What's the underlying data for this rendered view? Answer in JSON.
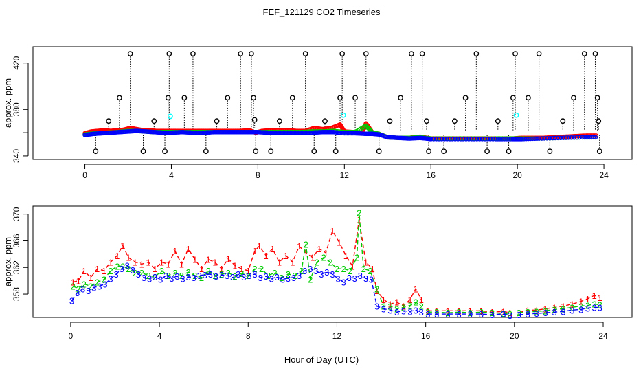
{
  "figure": {
    "title": "FEF_121129  CO2 Timeseries",
    "xlabel": "Hour of Day (UTC)"
  },
  "colors": {
    "series1": "#ff0000",
    "series2": "#00cc00",
    "series3": "#0000ff",
    "flagged": "#000000",
    "cyan": "#00ffff",
    "axis": "#000000"
  },
  "chart_data": [
    {
      "type": "scatter",
      "title": "",
      "xlabel": "",
      "ylabel": "approx. ppm",
      "xlim": [
        -2.4,
        25.3
      ],
      "ylim": [
        337,
        434
      ],
      "xticks": [
        0,
        4,
        8,
        12,
        16,
        20,
        24
      ],
      "yticks": [
        340,
        380,
        420
      ],
      "extra_yticks": [
        360
      ],
      "base_series": [
        {
          "name": "1",
          "color": "#ff0000",
          "x": [
            0.0,
            0.3,
            0.6,
            0.9,
            1.2,
            1.5,
            1.8,
            2.1,
            2.4,
            2.7,
            3.0,
            3.3,
            3.6,
            4.0,
            4.4,
            4.8,
            5.2,
            5.6,
            6.0,
            6.4,
            6.8,
            7.2,
            7.6,
            7.9,
            8.2,
            8.6,
            9.0,
            9.4,
            9.8,
            10.2,
            10.6,
            11.0,
            11.4,
            11.8,
            12.0,
            12.4,
            12.8,
            13.0,
            13.3,
            13.6,
            14.0,
            14.5,
            15.0,
            15.5,
            16.0,
            16.5,
            17.0,
            17.5,
            18.0,
            18.5,
            19.0,
            19.5,
            19.8,
            20.2,
            20.7,
            21.2,
            21.7,
            22.2,
            22.7,
            23.2,
            23.7
          ],
          "y": [
            359.5,
            361,
            361.5,
            362,
            361.5,
            362,
            362.5,
            364,
            363,
            362,
            362,
            361.5,
            361.5,
            361.5,
            361.5,
            361.5,
            361.5,
            361.5,
            361.5,
            361.5,
            361.5,
            361.5,
            362,
            360,
            361.5,
            362,
            362,
            362,
            361.5,
            361.5,
            364,
            363,
            364,
            367,
            361,
            360.5,
            360,
            368,
            360,
            359,
            356,
            355.5,
            355.5,
            356.5,
            355,
            355,
            355,
            355,
            355,
            355,
            355,
            355,
            355,
            355.5,
            355.5,
            355.5,
            356,
            356.5,
            357,
            357.5,
            357.5
          ]
        },
        {
          "name": "2",
          "color": "#00cc00",
          "x": [
            0.0,
            0.5,
            1.0,
            1.5,
            2.0,
            2.4,
            2.8,
            3.2,
            3.6,
            4.0,
            4.5,
            5.0,
            5.5,
            6.0,
            6.5,
            7.0,
            7.5,
            8.0,
            8.5,
            9.0,
            9.5,
            10.0,
            10.5,
            11.0,
            11.5,
            12.0,
            12.5,
            13.0,
            13.3,
            13.6,
            14.0,
            14.5,
            15.0,
            15.5,
            16.0,
            17.0,
            18.0,
            19.0,
            19.8,
            20.2,
            21.0,
            22.0,
            23.0,
            23.7
          ],
          "y": [
            358.5,
            359.5,
            360,
            360.5,
            361.5,
            361.5,
            361,
            360.5,
            360.5,
            360.5,
            360.5,
            360.5,
            360.5,
            360.5,
            360.5,
            360.5,
            360.5,
            360.5,
            360.5,
            360.5,
            360.5,
            360.5,
            361,
            361,
            361.5,
            360.5,
            360.5,
            366,
            360,
            359,
            356,
            355.5,
            355.5,
            356,
            355,
            355,
            355,
            355,
            355,
            355,
            355,
            355.5,
            356,
            356
          ]
        },
        {
          "name": "3",
          "color": "#0000ff",
          "x": [
            0.0,
            0.4,
            0.8,
            1.2,
            1.6,
            2.0,
            2.4,
            2.8,
            3.2,
            3.6,
            4.0,
            4.5,
            5.0,
            5.5,
            6.0,
            6.5,
            7.0,
            7.5,
            8.0,
            8.5,
            9.0,
            9.5,
            10.0,
            10.5,
            11.0,
            11.5,
            12.0,
            12.5,
            13.0,
            13.3,
            13.6,
            14.0,
            14.5,
            15.0,
            15.5,
            15.8,
            16.0,
            17.0,
            18.0,
            19.0,
            19.8,
            20.2,
            21.0,
            22.0,
            23.0,
            23.7
          ],
          "y": [
            358,
            359,
            359.5,
            360,
            360.5,
            361,
            361.5,
            361,
            360.5,
            360,
            360,
            360.5,
            360,
            360,
            360.5,
            360.5,
            360.5,
            360.5,
            360.5,
            360,
            360,
            360,
            360,
            360,
            360.5,
            360.5,
            359.5,
            359.5,
            359,
            359,
            358.5,
            356,
            355.5,
            355,
            355.5,
            355,
            354.5,
            354.5,
            354.5,
            354.5,
            354.5,
            354.5,
            355,
            355.5,
            356,
            356
          ]
        }
      ],
      "flagged_points": {
        "x": [
          0.5,
          1.1,
          1.6,
          2.1,
          2.7,
          3.2,
          3.7,
          3.85,
          3.9,
          4.6,
          5.0,
          5.6,
          6.1,
          6.6,
          7.2,
          7.7,
          7.8,
          7.85,
          7.9,
          8.6,
          9.0,
          9.6,
          10.2,
          10.6,
          11.1,
          11.6,
          11.8,
          11.9,
          12.5,
          13.0,
          13.6,
          14.1,
          14.6,
          15.1,
          15.6,
          15.8,
          15.9,
          16.6,
          17.1,
          17.6,
          18.1,
          18.6,
          19.1,
          19.6,
          19.8,
          19.9,
          20.5,
          21.0,
          21.5,
          22.1,
          22.6,
          23.1,
          23.6,
          23.7,
          23.75,
          23.8
        ],
        "y": [
          344,
          370,
          390,
          428,
          344,
          370,
          344,
          390,
          428,
          390,
          428,
          344,
          370,
          390,
          428,
          428,
          390,
          371,
          344,
          344,
          370,
          390,
          428,
          344,
          370,
          344,
          390,
          428,
          390,
          428,
          344,
          370,
          390,
          428,
          428,
          370,
          344,
          344,
          370,
          390,
          428,
          344,
          370,
          344,
          390,
          428,
          390,
          428,
          344,
          370,
          390,
          428,
          428,
          390,
          370,
          344
        ]
      },
      "cyan_points": {
        "x": [
          3.95,
          11.95,
          19.95
        ],
        "y": [
          374,
          375,
          375
        ]
      }
    },
    {
      "type": "line",
      "title": "",
      "xlabel": "",
      "ylabel": "approx. ppm",
      "xlim": [
        -1.7,
        25.3
      ],
      "ylim": [
        354.5,
        371.2
      ],
      "xticks": [
        0,
        4,
        8,
        12,
        16,
        20,
        24
      ],
      "yticks": [
        358,
        362,
        366,
        370
      ],
      "series": [
        {
          "name": "1",
          "color": "#ff0000",
          "label": "1",
          "x": [
            0.1,
            0.35,
            0.6,
            0.9,
            1.2,
            1.5,
            1.8,
            2.1,
            2.35,
            2.6,
            2.9,
            3.2,
            3.5,
            3.8,
            4.1,
            4.4,
            4.7,
            5.0,
            5.3,
            5.6,
            5.9,
            6.2,
            6.5,
            6.8,
            7.1,
            7.4,
            7.7,
            8.0,
            8.3,
            8.5,
            8.8,
            9.1,
            9.4,
            9.7,
            10.0,
            10.3,
            10.6,
            10.9,
            11.2,
            11.5,
            11.8,
            12.1,
            12.4,
            12.7,
            13.0,
            13.3,
            13.6,
            13.8,
            14.1,
            14.4,
            14.7,
            15.0,
            15.3,
            15.55,
            15.8,
            16.1,
            16.5,
            17.0,
            17.5,
            18.0,
            18.5,
            19.0,
            19.5,
            19.8,
            20.2,
            20.6,
            21.0,
            21.4,
            21.8,
            22.2,
            22.6,
            23.0,
            23.3,
            23.6,
            23.85
          ],
          "y": [
            359.8,
            360,
            361.5,
            360.5,
            361.8,
            361.5,
            362.8,
            363.8,
            365.3,
            363.5,
            362.8,
            362.5,
            362.8,
            361.8,
            362.8,
            362.5,
            364.5,
            362.5,
            364.8,
            363.2,
            361.8,
            363.2,
            362.8,
            361.8,
            363.3,
            362.3,
            361.8,
            361.5,
            364.5,
            365.2,
            363.8,
            364.8,
            362.8,
            363.8,
            362.8,
            365.2,
            364.2,
            363.5,
            364.8,
            364.2,
            367.5,
            365.8,
            363.8,
            362.2,
            369.2,
            362.8,
            361.8,
            358.5,
            357.2,
            356.5,
            356.8,
            356.2,
            357.2,
            358.8,
            357.2,
            355.5,
            355.5,
            355.5,
            355.5,
            355.5,
            355.5,
            355.3,
            355.4,
            355.2,
            355.2,
            355.6,
            355.6,
            355.8,
            356.0,
            356.2,
            356.5,
            356.9,
            357.3,
            357.8,
            357.5
          ]
        },
        {
          "name": "2",
          "color": "#00cc00",
          "label": "2",
          "x": [
            0.1,
            0.35,
            0.6,
            0.9,
            1.2,
            1.5,
            1.8,
            2.1,
            2.35,
            2.6,
            2.9,
            3.2,
            3.5,
            3.8,
            4.1,
            4.4,
            4.7,
            5.0,
            5.3,
            5.6,
            5.9,
            6.2,
            6.5,
            6.8,
            7.1,
            7.4,
            7.7,
            8.0,
            8.3,
            8.6,
            8.9,
            9.2,
            9.5,
            9.8,
            10.1,
            10.4,
            10.6,
            10.8,
            11.1,
            11.4,
            11.7,
            12.0,
            12.3,
            12.6,
            12.9,
            13.0,
            13.2,
            13.5,
            13.8,
            14.1,
            14.4,
            14.7,
            15.0,
            15.3,
            15.55,
            15.8,
            16.1,
            16.5,
            17.0,
            17.5,
            18.0,
            18.5,
            19.0,
            19.5,
            19.8,
            20.2,
            20.6,
            21.0,
            21.4,
            21.8,
            22.2,
            22.6,
            23.0,
            23.3,
            23.6,
            23.85
          ],
          "y": [
            359.2,
            358.8,
            359.5,
            359.2,
            359.8,
            360.2,
            361.5,
            362.2,
            362.2,
            361.8,
            361.2,
            361.2,
            360.8,
            360.6,
            361.5,
            360.8,
            361.2,
            360.8,
            361.3,
            360.8,
            360.5,
            361.5,
            360.8,
            361.0,
            361.2,
            360.7,
            361.1,
            360.8,
            361.8,
            361.8,
            360.8,
            361.2,
            360.5,
            361.0,
            360.8,
            361.5,
            365.5,
            360.2,
            362.8,
            363.5,
            362.8,
            361.8,
            361.8,
            361.5,
            363.5,
            370.2,
            361.8,
            361.5,
            358.8,
            356.2,
            356.2,
            355.8,
            356.0,
            356.3,
            356.8,
            356.2,
            355.3,
            355.3,
            355.2,
            355.3,
            355.2,
            355.3,
            355.2,
            355.1,
            355.0,
            355.2,
            355.3,
            355.4,
            355.5,
            355.7,
            355.8,
            356.0,
            356.2,
            356.3,
            356.5,
            356.4
          ]
        },
        {
          "name": "3",
          "color": "#0000ff",
          "label": "3",
          "x": [
            0.05,
            0.3,
            0.55,
            0.8,
            1.05,
            1.3,
            1.55,
            1.8,
            2.05,
            2.3,
            2.55,
            2.8,
            3.05,
            3.3,
            3.55,
            3.8,
            4.05,
            4.3,
            4.55,
            4.8,
            5.05,
            5.3,
            5.55,
            5.8,
            6.05,
            6.3,
            6.55,
            6.8,
            7.05,
            7.3,
            7.55,
            7.8,
            8.05,
            8.3,
            8.55,
            8.8,
            9.05,
            9.3,
            9.55,
            9.8,
            10.05,
            10.3,
            10.55,
            10.8,
            11.05,
            11.3,
            11.55,
            11.8,
            12.05,
            12.3,
            12.55,
            12.8,
            13.05,
            13.3,
            13.55,
            13.8,
            14.1,
            14.4,
            14.7,
            15.0,
            15.3,
            15.55,
            15.8,
            16.1,
            16.5,
            17.0,
            17.5,
            18.0,
            18.5,
            19.0,
            19.5,
            19.8,
            20.2,
            20.6,
            21.0,
            21.4,
            21.8,
            22.2,
            22.6,
            23.0,
            23.3,
            23.6,
            23.85
          ],
          "y": [
            357.0,
            358.2,
            358.8,
            358.5,
            359.0,
            359.2,
            359.5,
            360.3,
            361.0,
            361.8,
            362.3,
            361.6,
            361.0,
            360.5,
            360.3,
            360.6,
            360.2,
            360.8,
            360.4,
            360.7,
            360.3,
            360.6,
            360.5,
            360.8,
            360.9,
            361.0,
            360.7,
            360.9,
            360.8,
            360.6,
            361.0,
            360.6,
            360.8,
            361.0,
            360.5,
            360.7,
            360.3,
            360.6,
            360.2,
            360.4,
            360.5,
            360.8,
            361.5,
            361.8,
            361.5,
            361.0,
            361.3,
            361.0,
            360.3,
            359.8,
            360.5,
            360.4,
            360.8,
            360.4,
            360.2,
            356.2,
            355.8,
            355.6,
            355.3,
            355.5,
            355.4,
            355.6,
            355.3,
            355.0,
            355.0,
            355.0,
            355.0,
            355.0,
            355.0,
            354.9,
            355.0,
            354.8,
            354.9,
            355.0,
            355.1,
            355.2,
            355.3,
            355.4,
            355.6,
            355.7,
            355.9,
            356.0,
            356.0
          ]
        }
      ]
    }
  ]
}
